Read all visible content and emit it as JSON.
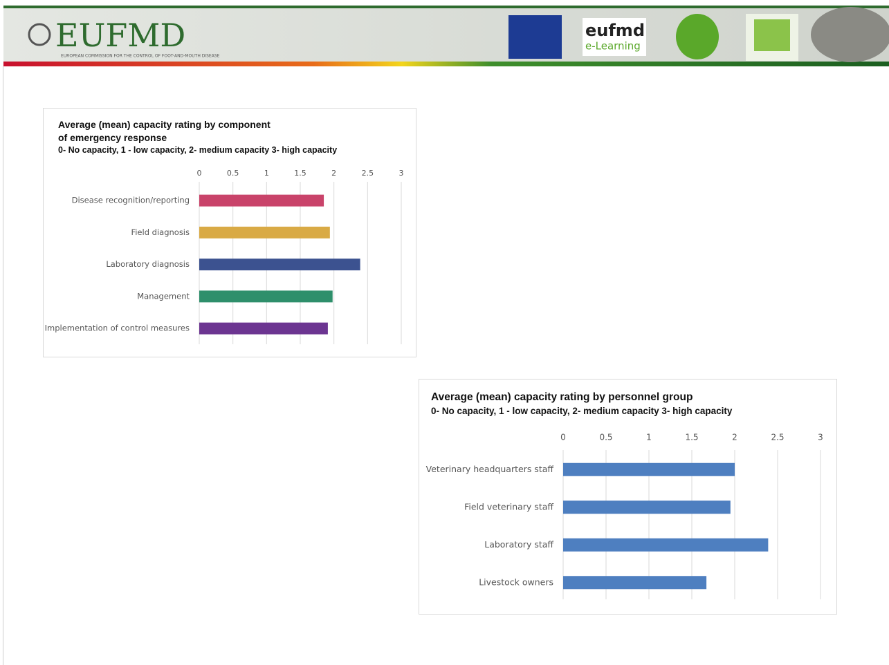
{
  "header": {
    "logo": "EUFMD",
    "tagline": "EUROPEAN COMMISSION FOR THE CONTROL OF FOOT-AND-MOUTH DISEASE",
    "elearning_logo": "eufmd",
    "elearning_text": "e-Learning"
  },
  "chart_data": [
    {
      "type": "bar",
      "orientation": "horizontal",
      "title": "Average (mean) capacity rating by component of emergency response",
      "subtitle": "0- No capacity, 1 - low capacity, 2- medium capacity 3- high capacity",
      "categories": [
        "Disease recognition/reporting",
        "Field diagnosis",
        "Laboratory diagnosis",
        "Management",
        "Implementation of control measures"
      ],
      "values": [
        1.85,
        1.94,
        2.39,
        1.98,
        1.91
      ],
      "colors": [
        "#c9436a",
        "#d9aa45",
        "#3c5290",
        "#2e8f6b",
        "#6c3591"
      ],
      "xlim": [
        0,
        3
      ],
      "xticks": [
        0,
        0.5,
        1,
        1.5,
        2,
        2.5,
        3
      ],
      "grid": true
    },
    {
      "type": "bar",
      "orientation": "horizontal",
      "title": "Average (mean) capacity rating by personnel group",
      "subtitle": "0- No capacity, 1 - low capacity, 2- medium capacity 3- high capacity",
      "categories": [
        "Veterinary headquarters staff",
        "Field veterinary staff",
        "Laboratory staff",
        "Livestock owners"
      ],
      "values": [
        2.0,
        1.95,
        2.39,
        1.67
      ],
      "color": "#4e7fc0",
      "xlim": [
        0,
        3
      ],
      "xticks": [
        0,
        0.5,
        1,
        1.5,
        2,
        2.5,
        3
      ],
      "grid": true
    }
  ]
}
